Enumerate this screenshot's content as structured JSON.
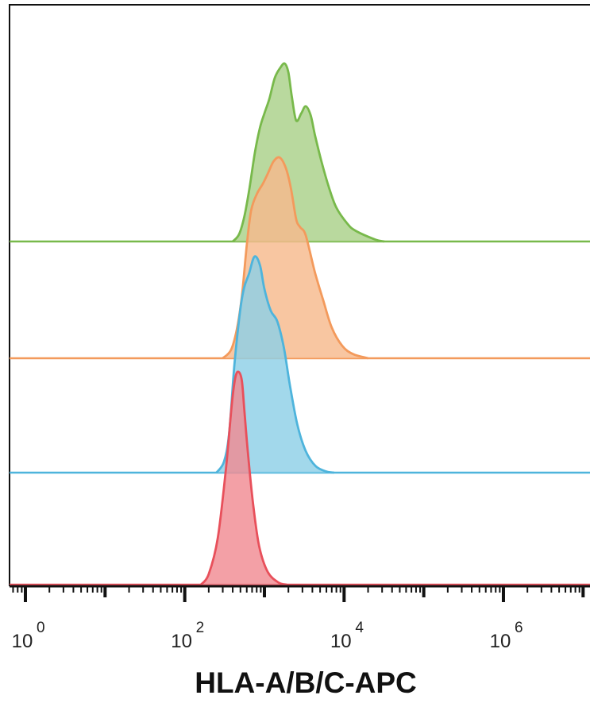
{
  "chart_data": {
    "type": "area",
    "subtype": "staggered flow cytometry histogram overlay",
    "xlabel": "HLA-A/B/C-APC",
    "xscale": "log",
    "xlim": [
      0.3,
      8000000
    ],
    "x_ticks": [
      {
        "base": "10",
        "exp": "0"
      },
      {
        "base": "10",
        "exp": "2"
      },
      {
        "base": "10",
        "exp": "4"
      },
      {
        "base": "10",
        "exp": "6"
      }
    ],
    "grid": false,
    "legend": "none",
    "series": [
      {
        "color": "#e8505b",
        "fill": "#f08b92",
        "x": [
          160,
          200,
          260,
          330,
          390,
          430,
          470,
          520,
          560,
          620,
          720,
          860,
          1100,
          1500,
          1900
        ],
        "y": [
          0,
          0.05,
          0.22,
          0.55,
          0.85,
          0.97,
          1.0,
          0.96,
          0.82,
          0.62,
          0.38,
          0.18,
          0.06,
          0.01,
          0
        ]
      },
      {
        "color": "#4eb4dc",
        "fill": "#8ecfe6",
        "x": [
          250,
          310,
          360,
          420,
          500,
          560,
          640,
          750,
          880,
          1000,
          1200,
          1450,
          1750,
          2100,
          2600,
          3300,
          4400,
          6000,
          7500
        ],
        "y": [
          0,
          0.05,
          0.18,
          0.5,
          0.76,
          0.86,
          0.92,
          1.0,
          0.96,
          0.85,
          0.75,
          0.7,
          0.58,
          0.4,
          0.22,
          0.1,
          0.03,
          0.005,
          0
        ]
      },
      {
        "color": "#f39a5c",
        "fill": "#f6b98c",
        "x": [
          300,
          380,
          450,
          520,
          600,
          680,
          800,
          950,
          1100,
          1300,
          1550,
          1850,
          2150,
          2500,
          2800,
          3300,
          4300,
          5500,
          7000,
          9500,
          13000,
          20000
        ],
        "y": [
          0,
          0.04,
          0.14,
          0.3,
          0.55,
          0.72,
          0.8,
          0.85,
          0.9,
          0.96,
          0.98,
          0.93,
          0.83,
          0.68,
          0.64,
          0.6,
          0.42,
          0.28,
          0.15,
          0.06,
          0.02,
          0
        ]
      },
      {
        "color": "#78b94b",
        "fill": "#a9d189",
        "x": [
          400,
          480,
          560,
          650,
          760,
          880,
          1000,
          1150,
          1350,
          1600,
          1800,
          2000,
          2200,
          2500,
          2900,
          3300,
          3800,
          4300,
          5200,
          6500,
          8000,
          11000,
          14000,
          25000,
          32000
        ],
        "y": [
          0,
          0.04,
          0.14,
          0.3,
          0.5,
          0.64,
          0.72,
          0.8,
          0.92,
          0.98,
          1.0,
          0.95,
          0.82,
          0.68,
          0.72,
          0.76,
          0.71,
          0.6,
          0.45,
          0.3,
          0.19,
          0.1,
          0.06,
          0.01,
          0
        ]
      }
    ]
  }
}
